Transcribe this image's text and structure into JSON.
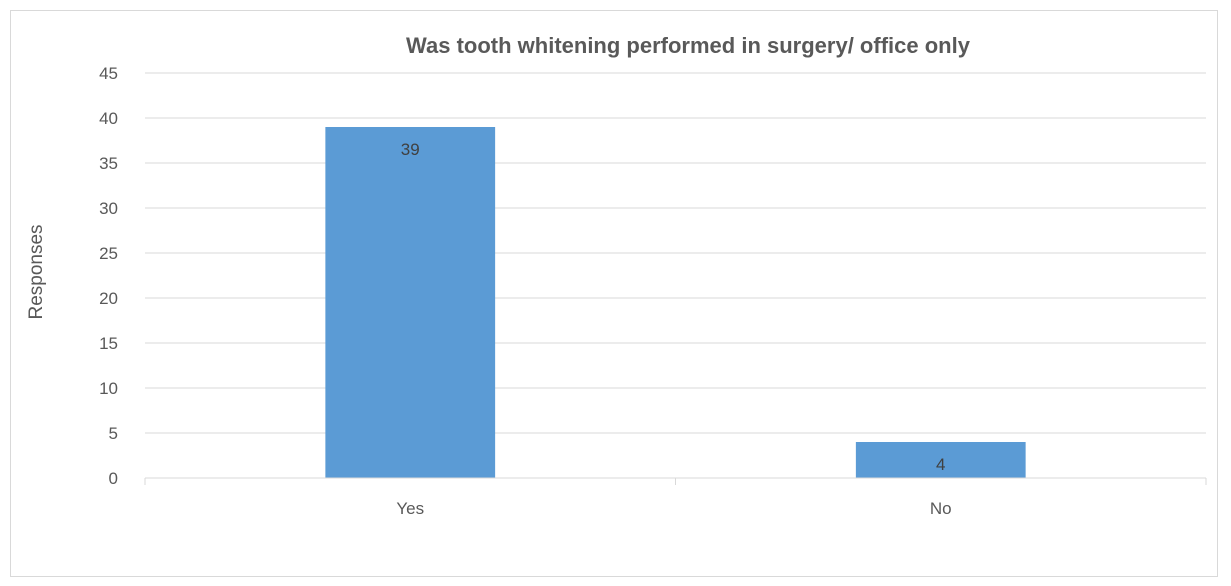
{
  "chart_data": {
    "type": "bar",
    "title": "Was tooth whitening performed in surgery/ office only",
    "xlabel": "",
    "ylabel": "Responses",
    "categories": [
      "Yes",
      "No"
    ],
    "values": [
      39,
      4
    ],
    "data_labels": [
      "39",
      "4"
    ],
    "ylim": [
      0,
      45
    ],
    "yticks": [
      "0",
      "5",
      "10",
      "15",
      "20",
      "25",
      "30",
      "35",
      "40",
      "45"
    ],
    "grid": true,
    "legend": "none",
    "bar_color": "#5b9bd5",
    "gridline_color": "#d9d9d9",
    "text_color": "#595959"
  }
}
